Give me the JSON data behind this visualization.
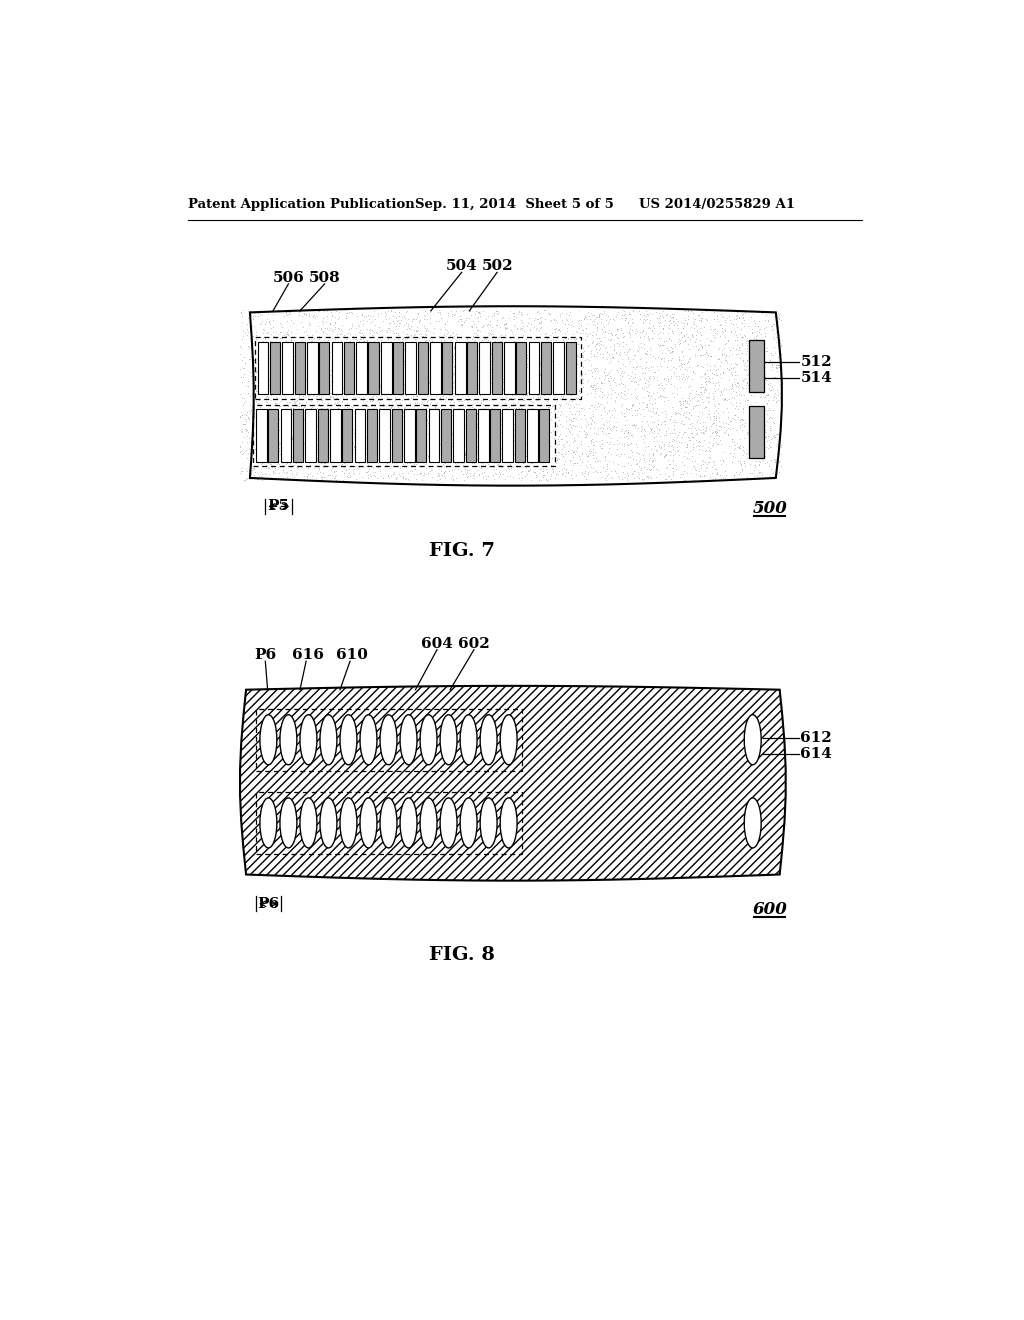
{
  "header_left": "Patent Application Publication",
  "header_mid": "Sep. 11, 2014  Sheet 5 of 5",
  "header_right": "US 2014/0255829 A1",
  "fig7_label": "FIG. 7",
  "fig8_label": "FIG. 8",
  "fig7_num": "500",
  "fig8_num": "600",
  "bg_color": "#ffffff"
}
